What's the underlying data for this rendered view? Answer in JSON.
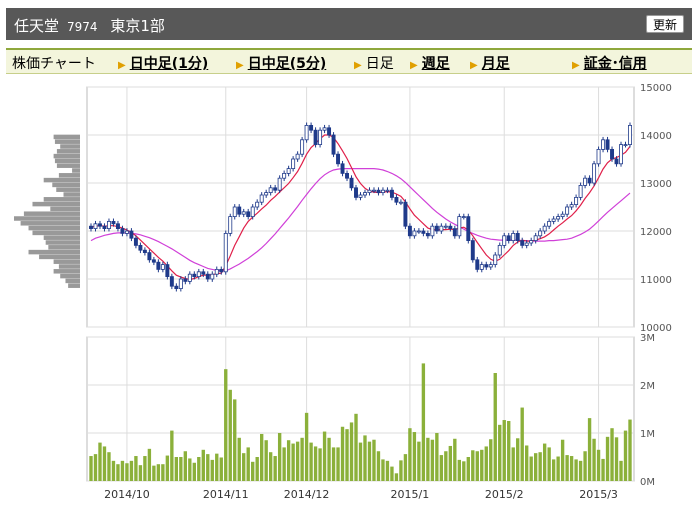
{
  "header": {
    "name": "任天堂",
    "code": "7974",
    "market": "東京1部",
    "refresh_label": "更新"
  },
  "tabs": {
    "chart_label": "株価チャート",
    "intraday1": "日中足(1分)",
    "intraday5": "日中足(5分)",
    "daily": "日足",
    "weekly": "週足",
    "monthly": "月足",
    "margin": "証金･信用"
  },
  "colors": {
    "candle": "#1f3a8a",
    "ma_short": "#e0204a",
    "ma_long": "#d040d8",
    "volume_bar": "#8bb03a",
    "vol_profile": "#999999",
    "header_bg": "#585858",
    "tab_bg": "#f3f5dc"
  },
  "chart_data": [
    {
      "type": "candlestick",
      "y_ticks": [
        "15000",
        "14000",
        "13000",
        "12000",
        "11000",
        "10000"
      ],
      "ylim": [
        10000,
        15000
      ],
      "x_tick_labels": [
        "2014/10",
        "2014/11",
        "2014/12",
        "2015/1",
        "2015/2",
        "2015/3"
      ],
      "x_tick_index": [
        8,
        30,
        48,
        71,
        92,
        113
      ],
      "grid": true,
      "close": [
        12050,
        12150,
        12100,
        12050,
        12200,
        12150,
        12050,
        11950,
        12000,
        11850,
        11700,
        11600,
        11550,
        11400,
        11350,
        11200,
        11300,
        11050,
        10850,
        10800,
        11000,
        10950,
        11100,
        11050,
        11150,
        11100,
        11000,
        11100,
        11200,
        11150,
        11950,
        12300,
        12500,
        12350,
        12400,
        12300,
        12500,
        12600,
        12750,
        12800,
        12900,
        12850,
        13100,
        13200,
        13300,
        13500,
        13600,
        13900,
        14200,
        14100,
        13800,
        14100,
        14150,
        14000,
        13600,
        13400,
        13200,
        13100,
        12900,
        12700,
        12750,
        12800,
        12850,
        12850,
        12800,
        12850,
        12850,
        12700,
        12600,
        12600,
        12100,
        11900,
        12000,
        12000,
        11950,
        11900,
        12100,
        12000,
        12100,
        12100,
        12050,
        11900,
        12300,
        12300,
        11800,
        11400,
        11200,
        11300,
        11250,
        11300,
        11500,
        11700,
        11900,
        11800,
        11950,
        11800,
        11700,
        11750,
        11800,
        11900,
        12000,
        12100,
        12200,
        12250,
        12300,
        12350,
        12500,
        12550,
        12700,
        12950,
        13100,
        13000,
        13400,
        13700,
        13900,
        13700,
        13500,
        13400,
        13800,
        13800,
        14200
      ],
      "open": [
        12100,
        12050,
        12150,
        12100,
        12050,
        12200,
        12150,
        12050,
        11950,
        12000,
        11850,
        11700,
        11600,
        11550,
        11400,
        11350,
        11200,
        11300,
        11050,
        10850,
        10800,
        11000,
        10950,
        11100,
        11050,
        11150,
        11100,
        11000,
        11100,
        11200,
        11150,
        11950,
        12300,
        12500,
        12350,
        12400,
        12300,
        12500,
        12600,
        12750,
        12800,
        12900,
        12850,
        13100,
        13200,
        13300,
        13500,
        13600,
        13900,
        14200,
        14100,
        13800,
        14100,
        14150,
        14000,
        13600,
        13400,
        13200,
        13100,
        12900,
        12700,
        12750,
        12800,
        12850,
        12850,
        12800,
        12850,
        12850,
        12700,
        12600,
        12600,
        12100,
        11900,
        12000,
        12000,
        11950,
        11900,
        12100,
        12000,
        12100,
        12100,
        12050,
        11900,
        12300,
        12300,
        11800,
        11400,
        11200,
        11300,
        11250,
        11300,
        11500,
        11700,
        11900,
        11800,
        11950,
        11800,
        11700,
        11750,
        11800,
        11900,
        12000,
        12100,
        12200,
        12250,
        12300,
        12350,
        12500,
        12550,
        12700,
        12950,
        13100,
        13000,
        13400,
        13700,
        13900,
        13700,
        13500,
        13400,
        13800,
        13800
      ],
      "ma_short": [
        12080,
        12100,
        12110,
        12100,
        12110,
        12110,
        12090,
        12060,
        12020,
        11970,
        11900,
        11810,
        11720,
        11630,
        11540,
        11450,
        11370,
        11270,
        11170,
        11080,
        11040,
        11010,
        10990,
        11010,
        11050,
        11080,
        11080,
        11090,
        11110,
        11120,
        11280,
        11480,
        11700,
        11880,
        12060,
        12200,
        12290,
        12370,
        12460,
        12540,
        12640,
        12720,
        12810,
        12900,
        12990,
        13110,
        13240,
        13410,
        13600,
        13740,
        13820,
        13920,
        14000,
        14000,
        13950,
        13820,
        13670,
        13510,
        13320,
        13130,
        12990,
        12890,
        12830,
        12810,
        12800,
        12810,
        12820,
        12810,
        12770,
        12720,
        12610,
        12460,
        12330,
        12240,
        12150,
        12060,
        12030,
        12020,
        12030,
        12030,
        12040,
        12030,
        12060,
        12080,
        12020,
        11900,
        11760,
        11630,
        11500,
        11410,
        11370,
        11410,
        11500,
        11590,
        11700,
        11770,
        11810,
        11790,
        11790,
        11810,
        11840,
        11880,
        11940,
        12020,
        12100,
        12170,
        12250,
        12320,
        12420,
        12540,
        12680,
        12800,
        12940,
        13110,
        13290,
        13420,
        13500,
        13530,
        13580,
        13640,
        13760
      ],
      "ma_long": [
        11800,
        11850,
        11880,
        11910,
        11930,
        11950,
        11960,
        11960,
        11960,
        11950,
        11940,
        11920,
        11890,
        11860,
        11820,
        11780,
        11730,
        11680,
        11630,
        11570,
        11510,
        11450,
        11390,
        11340,
        11300,
        11260,
        11220,
        11200,
        11180,
        11170,
        11170,
        11210,
        11260,
        11310,
        11370,
        11430,
        11500,
        11570,
        11650,
        11740,
        11840,
        11940,
        12050,
        12160,
        12270,
        12390,
        12510,
        12640,
        12760,
        12880,
        12990,
        13090,
        13170,
        13230,
        13270,
        13290,
        13300,
        13300,
        13300,
        13300,
        13300,
        13300,
        13300,
        13300,
        13290,
        13270,
        13240,
        13200,
        13150,
        13090,
        13010,
        12920,
        12830,
        12740,
        12650,
        12560,
        12470,
        12390,
        12320,
        12250,
        12190,
        12140,
        12090,
        12040,
        11990,
        11950,
        11910,
        11880,
        11850,
        11830,
        11820,
        11810,
        11810,
        11810,
        11810,
        11810,
        11800,
        11800,
        11790,
        11790,
        11790,
        11790,
        11800,
        11800,
        11810,
        11820,
        11830,
        11850,
        11890,
        11930,
        11980,
        12040,
        12120,
        12210,
        12300,
        12390,
        12470,
        12550,
        12630,
        12710,
        12790
      ],
      "volume_profile_levels": [
        13950,
        13850,
        13750,
        13650,
        13550,
        13450,
        13350,
        13250,
        13150,
        13050,
        12950,
        12850,
        12750,
        12650,
        12550,
        12450,
        12350,
        12250,
        12150,
        12050,
        11950,
        11850,
        11750,
        11650,
        11550,
        11450,
        11350,
        11250,
        11150,
        11050,
        10950,
        10850
      ],
      "volume_profile_values": [
        0.4,
        0.38,
        0.3,
        0.35,
        0.4,
        0.38,
        0.35,
        0.12,
        0.32,
        0.55,
        0.42,
        0.36,
        0.25,
        0.55,
        0.72,
        0.45,
        0.85,
        1.0,
        0.9,
        0.78,
        0.72,
        0.55,
        0.52,
        0.48,
        0.78,
        0.62,
        0.4,
        0.32,
        0.4,
        0.3,
        0.22,
        0.18
      ]
    },
    {
      "type": "bar",
      "series_name": "volume",
      "y_ticks": [
        "3M",
        "2M",
        "1M",
        "0M"
      ],
      "ylim": [
        0,
        3000000
      ],
      "values": [
        520000,
        560000,
        800000,
        720000,
        600000,
        420000,
        350000,
        420000,
        370000,
        420000,
        520000,
        330000,
        520000,
        670000,
        320000,
        350000,
        350000,
        530000,
        1050000,
        500000,
        500000,
        620000,
        470000,
        380000,
        500000,
        650000,
        560000,
        440000,
        570000,
        490000,
        2330000,
        1900000,
        1700000,
        900000,
        580000,
        700000,
        400000,
        500000,
        980000,
        850000,
        600000,
        520000,
        1000000,
        700000,
        850000,
        780000,
        820000,
        900000,
        1420000,
        800000,
        720000,
        680000,
        1030000,
        900000,
        700000,
        700000,
        1130000,
        1080000,
        1220000,
        1400000,
        800000,
        950000,
        820000,
        860000,
        620000,
        450000,
        420000,
        300000,
        160000,
        430000,
        560000,
        1100000,
        1020000,
        820000,
        2450000,
        900000,
        860000,
        1000000,
        540000,
        620000,
        730000,
        880000,
        440000,
        410000,
        500000,
        640000,
        620000,
        650000,
        720000,
        870000,
        2250000,
        1170000,
        1270000,
        1250000,
        700000,
        890000,
        1530000,
        740000,
        510000,
        580000,
        600000,
        780000,
        700000,
        450000,
        510000,
        860000,
        540000,
        520000,
        450000,
        420000,
        620000,
        1310000,
        880000,
        650000,
        460000,
        920000,
        1100000,
        910000,
        420000,
        1050000,
        1280000
      ]
    }
  ]
}
